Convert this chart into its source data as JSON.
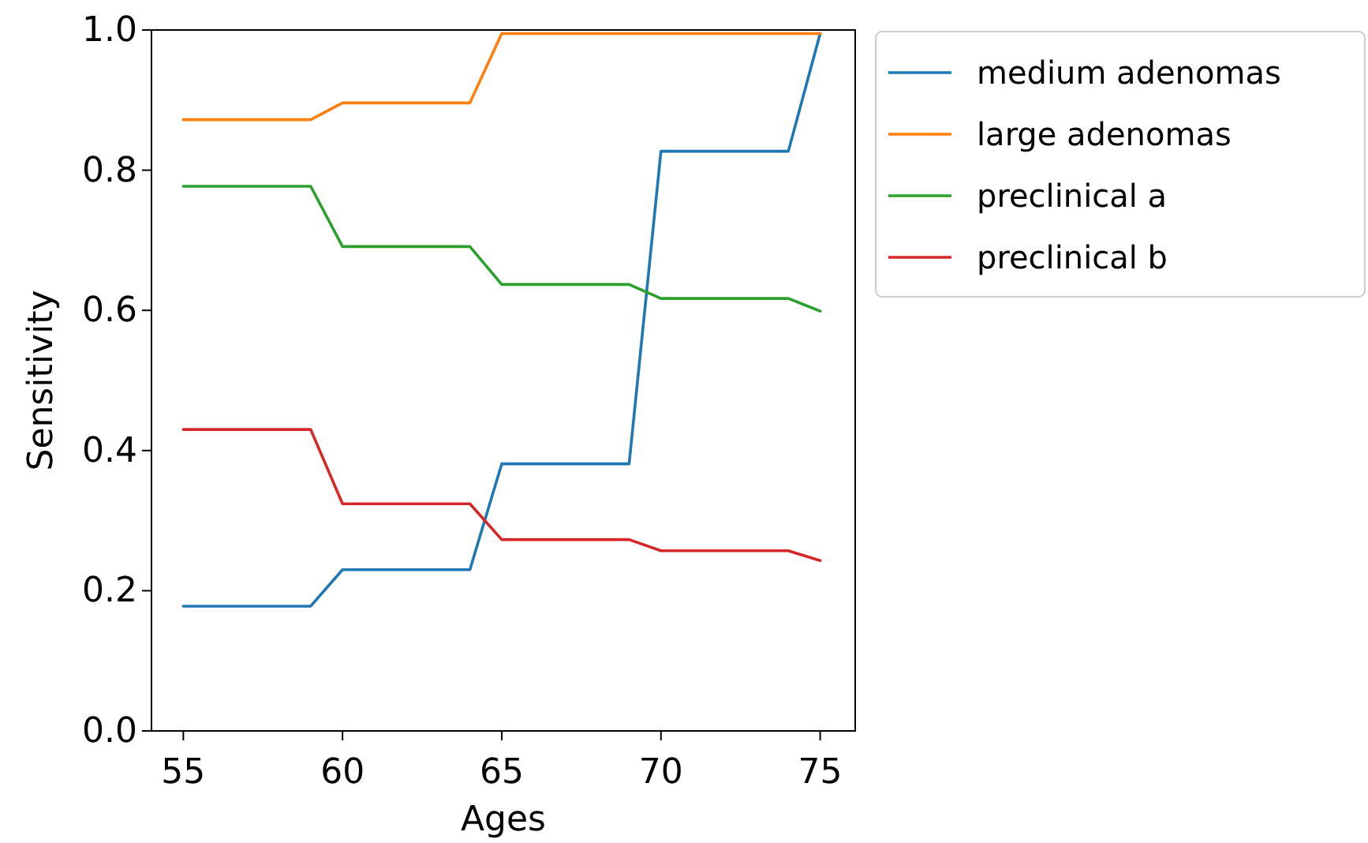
{
  "chart_data": {
    "type": "line",
    "xlabel": "Ages",
    "ylabel": "Sensitivity",
    "x": [
      55,
      59,
      60,
      64,
      65,
      69,
      70,
      74,
      75
    ],
    "xlim": [
      54,
      76.1
    ],
    "xticks": [
      55,
      60,
      65,
      70,
      75
    ],
    "ylim": [
      0,
      1
    ],
    "yticks": [
      {
        "value": 0,
        "label": "0.0"
      },
      {
        "value": 0.2,
        "label": "0.2"
      },
      {
        "value": 0.4,
        "label": "0.4"
      },
      {
        "value": 0.6,
        "label": "0.6"
      },
      {
        "value": 0.8,
        "label": "0.8"
      },
      {
        "value": 1,
        "label": "1.0"
      }
    ],
    "legend": "top right",
    "grid": false,
    "line_style": "solid",
    "series": [
      {
        "name": "medium adenomas",
        "color": "#1f77b4",
        "values": [
          0.178,
          0.178,
          0.23,
          0.23,
          0.381,
          0.381,
          0.827,
          0.827,
          0.995
        ]
      },
      {
        "name": "large adenomas",
        "color": "#ff7f0e",
        "values": [
          0.872,
          0.872,
          0.896,
          0.896,
          0.995,
          0.995,
          0.995,
          0.995,
          0.995
        ]
      },
      {
        "name": "preclinical a",
        "color": "#2ca02c",
        "values": [
          0.777,
          0.777,
          0.691,
          0.691,
          0.637,
          0.637,
          0.617,
          0.617,
          0.599
        ]
      },
      {
        "name": "preclinical b",
        "color": "#d62728",
        "values": [
          0.43,
          0.43,
          0.324,
          0.324,
          0.273,
          0.273,
          0.257,
          0.257,
          0.243
        ]
      }
    ]
  }
}
